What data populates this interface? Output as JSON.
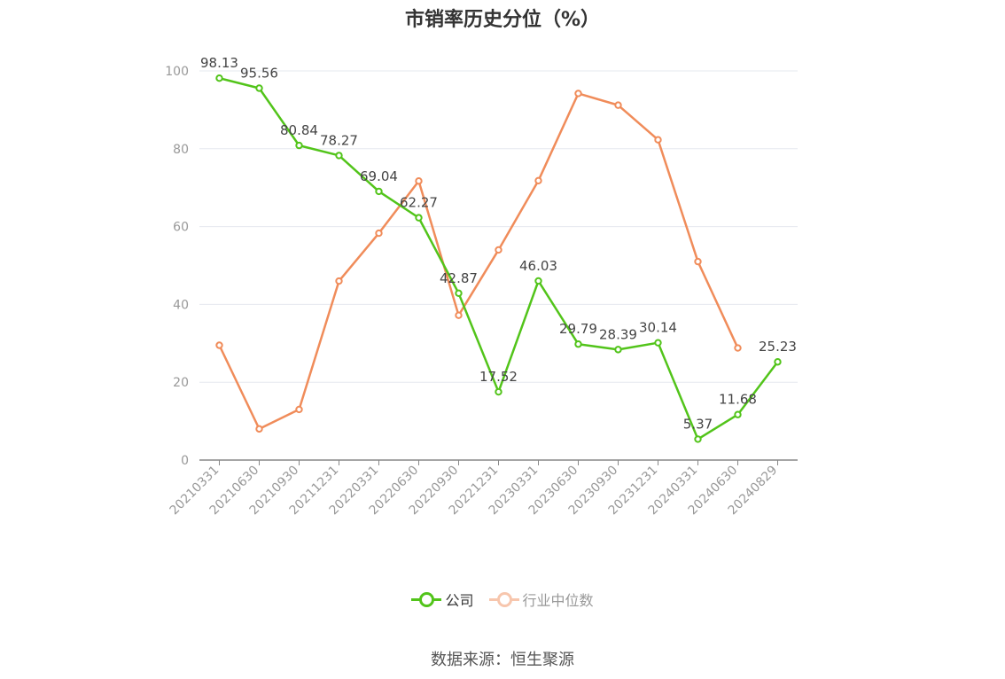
{
  "chart_data": {
    "type": "line",
    "title": "市销率历史分位（%）",
    "categories": [
      "20210331",
      "20210630",
      "20210930",
      "20211231",
      "20220331",
      "20220630",
      "20220930",
      "20221231",
      "20230331",
      "20230630",
      "20230930",
      "20231231",
      "20240331",
      "20240630",
      "20240829"
    ],
    "ylim": [
      0,
      100
    ],
    "yticks": [
      0,
      20,
      40,
      60,
      80,
      100
    ],
    "grid": true,
    "legend_position": "bottom",
    "series": [
      {
        "name": "公司",
        "color": "#52c41a",
        "values": [
          98.13,
          95.56,
          80.84,
          78.27,
          69.04,
          62.27,
          42.87,
          17.52,
          46.03,
          29.79,
          28.39,
          30.14,
          5.37,
          11.68,
          25.23
        ],
        "labels": [
          "98.13",
          "95.56",
          "80.84",
          "78.27",
          "69.04",
          "62.27",
          "42.87",
          "17.52",
          "46.03",
          "29.79",
          "28.39",
          "30.14",
          "5.37",
          "11.68",
          "25.23"
        ]
      },
      {
        "name": "行业中位数",
        "color": "#f08c5a",
        "values": [
          29.5,
          8.0,
          13.0,
          46.0,
          58.3,
          71.7,
          37.2,
          54.0,
          71.8,
          94.2,
          91.2,
          82.3,
          51.0,
          28.8,
          null
        ]
      }
    ]
  },
  "source": "数据来源：恒生聚源"
}
